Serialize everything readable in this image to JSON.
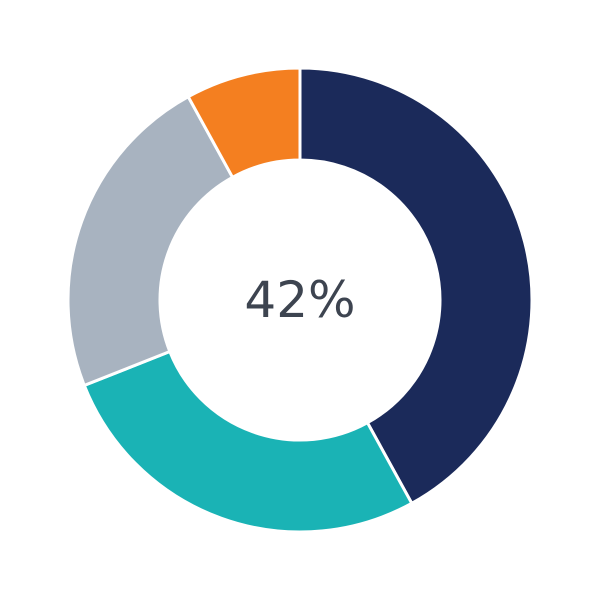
{
  "chart_data": {
    "type": "pie",
    "variant": "donut",
    "center_label": "42%",
    "slices": [
      {
        "value": 42,
        "color": "#1b2a5a"
      },
      {
        "value": 27,
        "color": "#1ab3b5"
      },
      {
        "value": 23,
        "color": "#a8b3c0"
      },
      {
        "value": 8,
        "color": "#f47f20"
      }
    ],
    "start": "top",
    "direction": "clockwise",
    "legend": "none"
  }
}
